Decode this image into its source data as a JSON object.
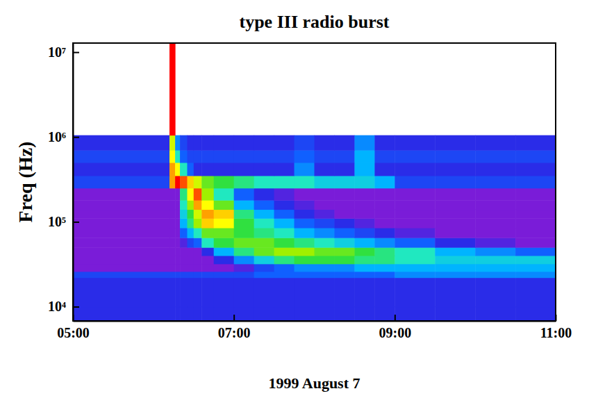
{
  "chart_data": {
    "type": "heatmap",
    "title": "type III radio burst",
    "x_label": "1999 August 7",
    "y_label": "Freq (Hz)",
    "log": "y",
    "grid": false,
    "xlim": [
      5,
      11
    ],
    "xticks": [
      {
        "value": 5,
        "label": "05:00"
      },
      {
        "value": 7,
        "label": "07:00"
      },
      {
        "value": 9,
        "label": "09:00"
      },
      {
        "value": 11,
        "label": "11:00"
      }
    ],
    "ylim": [
      6800,
      12800000
    ],
    "yticks": [
      {
        "value": 10000,
        "label": "10⁴"
      },
      {
        "value": 100000,
        "label": "10⁵"
      },
      {
        "value": 1000000,
        "label": "10⁶"
      },
      {
        "value": 10000000,
        "label": "10⁷"
      }
    ],
    "x_bins": [
      5.0,
      6.2,
      6.27,
      6.33,
      6.42,
      6.5,
      6.6,
      6.75,
      7.0,
      7.25,
      7.5,
      7.75,
      8.0,
      8.25,
      8.5,
      8.75,
      9.0,
      9.5,
      10.0,
      10.5,
      11.0
    ],
    "y_bins": [
      6800,
      10000,
      22000,
      26000,
      32000,
      40000,
      50000,
      65000,
      85000,
      110000,
      140000,
      180000,
      250000,
      350000,
      500000,
      700000,
      1050000,
      12800000
    ],
    "cells": [
      [
        2,
        2,
        2,
        2,
        2,
        2,
        2,
        2,
        2,
        2,
        2,
        2,
        2,
        2,
        2,
        2,
        2,
        2,
        2,
        2
      ],
      [
        2,
        2,
        2,
        2,
        2,
        2,
        2,
        2,
        2,
        2,
        2,
        2,
        2,
        2,
        2,
        2,
        2,
        2,
        2,
        2
      ],
      [
        2.5,
        2.5,
        2.5,
        2.5,
        2.5,
        2.5,
        2.5,
        2.5,
        2.5,
        3,
        3,
        3,
        3,
        3,
        3,
        3,
        3.5,
        3.5,
        3.5,
        3.5
      ],
      [
        1,
        1,
        1,
        1,
        1,
        1,
        1,
        1,
        1.5,
        2.5,
        3,
        3.5,
        3.5,
        3.5,
        4,
        4,
        4,
        4,
        4,
        4
      ],
      [
        1,
        1,
        1,
        1,
        1,
        1,
        1,
        2,
        3.5,
        4.5,
        5.5,
        6,
        6,
        6,
        5.5,
        5.5,
        5,
        4.5,
        4.5,
        4.5
      ],
      [
        1,
        1,
        1,
        1,
        1,
        1,
        2,
        4,
        5.5,
        6.5,
        7,
        7,
        6.5,
        6.5,
        6,
        5.5,
        5,
        4,
        3.5,
        3
      ],
      [
        1,
        1,
        1,
        1.5,
        2.5,
        3,
        5,
        6,
        6.5,
        6.5,
        6,
        5.5,
        5,
        4.5,
        4,
        3.5,
        3,
        2,
        1.5,
        1
      ],
      [
        1,
        1,
        1,
        3,
        4,
        5,
        6.5,
        6.5,
        6,
        5.5,
        5,
        4,
        3.5,
        3,
        2.5,
        2,
        1.5,
        1,
        1,
        1
      ],
      [
        1,
        1,
        1,
        4,
        5.5,
        7,
        8.5,
        8,
        6,
        5,
        4,
        3,
        2.5,
        2,
        1.5,
        1,
        1,
        1,
        1,
        1
      ],
      [
        1,
        1,
        1,
        4.5,
        6,
        7.5,
        9,
        8.5,
        5.5,
        4,
        3,
        2,
        1.5,
        1,
        1,
        1,
        1,
        1,
        1,
        1
      ],
      [
        1,
        1,
        1,
        5,
        7,
        9,
        8,
        6.5,
        4,
        3,
        2,
        1.5,
        1,
        1,
        1,
        1,
        1,
        1,
        1,
        1
      ],
      [
        1,
        1,
        1,
        5.5,
        8,
        9.5,
        7,
        5,
        3,
        2,
        1.5,
        1,
        1,
        1,
        1,
        1,
        1,
        1,
        1,
        1
      ],
      [
        2.5,
        9,
        10,
        9.5,
        8.5,
        7.5,
        6.5,
        6,
        5.5,
        5,
        5,
        5,
        4.5,
        4.5,
        4.5,
        4,
        2.5,
        2.5,
        2.5,
        2.5
      ],
      [
        2,
        9,
        8,
        5,
        3,
        2,
        2,
        2,
        2,
        2,
        2,
        3.5,
        2,
        2,
        4,
        2,
        2,
        2,
        2,
        2
      ],
      [
        2.5,
        8,
        5,
        3,
        2.5,
        2.5,
        2.5,
        2.5,
        2.5,
        2.5,
        2.5,
        3,
        2.5,
        2.5,
        4,
        2.5,
        2.5,
        2.5,
        2.5,
        2.5
      ],
      [
        2,
        7.5,
        3.5,
        2.5,
        2,
        2,
        2,
        2,
        2,
        2,
        2,
        2.5,
        2,
        2,
        3.5,
        2,
        2,
        2,
        2,
        2
      ],
      [
        null,
        10,
        null,
        null,
        null,
        null,
        null,
        null,
        null,
        null,
        null,
        null,
        null,
        null,
        null,
        null,
        null,
        null,
        null,
        null
      ]
    ]
  }
}
